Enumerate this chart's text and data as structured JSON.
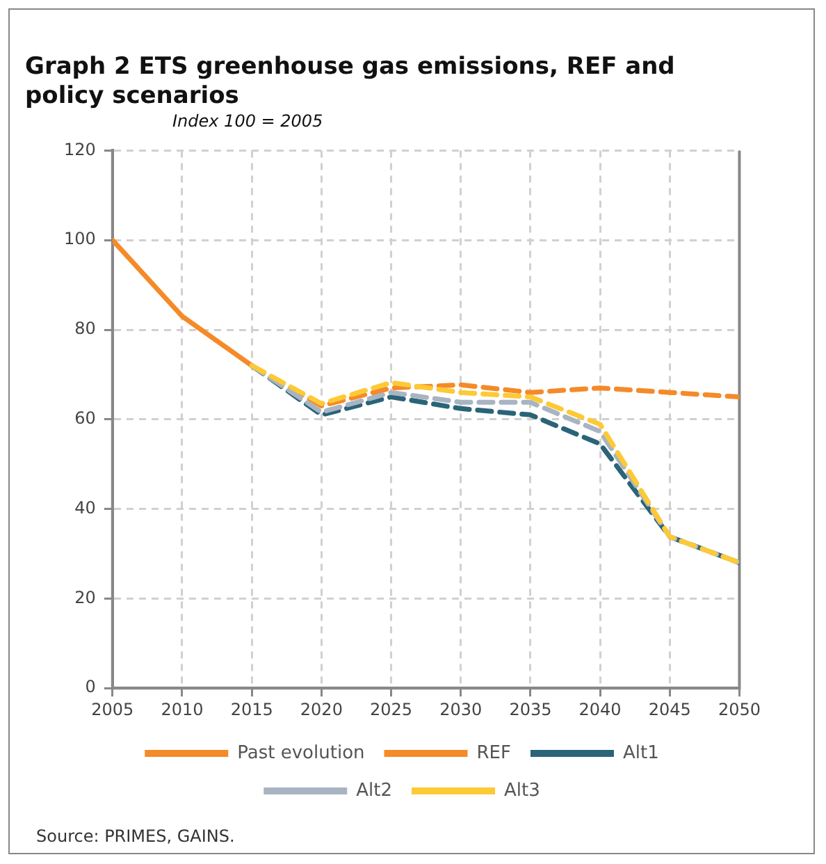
{
  "chart_data": {
    "type": "line",
    "title": "Graph 2 ETS greenhouse gas emissions, REF and policy scenarios",
    "subtitle": "Index 100 = 2005",
    "series": [
      {
        "name": "Past evolution",
        "color": "#f58a28",
        "line_style": "solid",
        "x": [
          2005,
          2010,
          2015
        ],
        "values": [
          100,
          83,
          72
        ]
      },
      {
        "name": "REF",
        "color": "#f58a28",
        "line_style": "dashed",
        "x": [
          2015,
          2020,
          2025,
          2030,
          2035,
          2040,
          2045,
          2050
        ],
        "values": [
          72,
          63,
          67,
          67.7,
          66,
          67,
          66,
          65
        ]
      },
      {
        "name": "Alt1",
        "color": "#2a6478",
        "line_style": "dashed",
        "x": [
          2015,
          2020,
          2025,
          2030,
          2035,
          2040,
          2045,
          2050
        ],
        "values": [
          72,
          61,
          65,
          62.4,
          61,
          54.5,
          33.8,
          28
        ]
      },
      {
        "name": "Alt2",
        "color": "#a9b4c2",
        "line_style": "dashed",
        "x": [
          2015,
          2020,
          2025,
          2030,
          2035,
          2040,
          2045,
          2050
        ],
        "values": [
          72,
          61.6,
          66,
          63.8,
          63.8,
          57.3,
          33.8,
          28
        ]
      },
      {
        "name": "Alt3",
        "color": "#fdc935",
        "line_style": "dashed",
        "x": [
          2015,
          2020,
          2025,
          2030,
          2035,
          2040,
          2045,
          2050
        ],
        "values": [
          72,
          63.5,
          68.2,
          66,
          65,
          58.9,
          33.8,
          28
        ]
      }
    ],
    "xlim": [
      2005,
      2050
    ],
    "xticks": [
      2005,
      2010,
      2015,
      2020,
      2025,
      2030,
      2035,
      2040,
      2045,
      2050
    ],
    "ylim": [
      0,
      120
    ],
    "yticks": [
      0,
      20,
      40,
      60,
      80,
      100,
      120
    ],
    "grid": true,
    "legend": "bottom",
    "marker": "none",
    "annotations": [
      "Source: PRIMES, GAINS."
    ]
  }
}
